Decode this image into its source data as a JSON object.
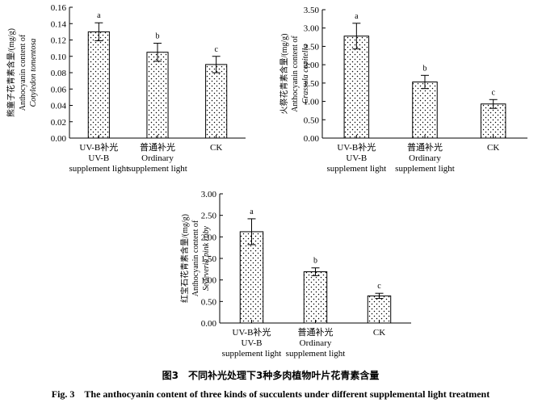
{
  "chart_data": [
    {
      "type": "bar",
      "ylabel_zh": "熊童子花青素含量/(mg/g)",
      "ylabel_en": "Anthocyanin content of",
      "ylabel_species": "Cotyledon tomentosa",
      "ylim": [
        0,
        0.16
      ],
      "yticks": [
        "0.00",
        "0.02",
        "0.04",
        "0.06",
        "0.08",
        "0.10",
        "0.12",
        "0.14",
        "0.16"
      ],
      "categories": [
        [
          "UV-B补光",
          "UV-B",
          "supplement light"
        ],
        [
          "普通补光",
          "Ordinary",
          "supplement light"
        ],
        [
          "CK"
        ]
      ],
      "values": [
        0.13,
        0.105,
        0.09
      ],
      "errors": [
        0.011,
        0.011,
        0.01
      ],
      "letters": [
        "a",
        "b",
        "c"
      ],
      "grid": false
    },
    {
      "type": "bar",
      "ylabel_zh": "火祭花青素含量/(mg/g)",
      "ylabel_en": "Anthocyanin content of",
      "ylabel_species": "Crassula capitella",
      "ylim": [
        0,
        3.5
      ],
      "yticks": [
        "0.00",
        "0.50",
        "1.00",
        "1.50",
        "2.00",
        "2.50",
        "3.00",
        "3.50"
      ],
      "categories": [
        [
          "UV-B补光",
          "UV-B",
          "supplement light"
        ],
        [
          "普通补光",
          "Ordinary",
          "supplement light"
        ],
        [
          "CK"
        ]
      ],
      "values": [
        2.78,
        1.53,
        0.93
      ],
      "errors": [
        0.35,
        0.18,
        0.12
      ],
      "letters": [
        "a",
        "b",
        "c"
      ],
      "grid": false
    },
    {
      "type": "bar",
      "ylabel_zh": "红宝石花青素含量/(mg/g)",
      "ylabel_en": "Anthocyanin content of",
      "ylabel_species": "Sedeveria pink ruby",
      "ylim": [
        0,
        3.0
      ],
      "yticks": [
        "0.00",
        "0.50",
        "1.00",
        "1.50",
        "2.00",
        "2.50",
        "3.00"
      ],
      "categories": [
        [
          "UV-B补光",
          "UV-B",
          "supplement light"
        ],
        [
          "普通补光",
          "Ordinary",
          "supplement light"
        ],
        [
          "CK"
        ]
      ],
      "values": [
        2.12,
        1.19,
        0.63
      ],
      "errors": [
        0.3,
        0.09,
        0.06
      ],
      "letters": [
        "a",
        "b",
        "c"
      ],
      "grid": false
    }
  ],
  "caption": {
    "zh": "图3　不同补光处理下3种多肉植物叶片花青素含量",
    "en": "Fig. 3　The anthocyanin content of three kinds of succulents under different supplemental light treatment"
  }
}
